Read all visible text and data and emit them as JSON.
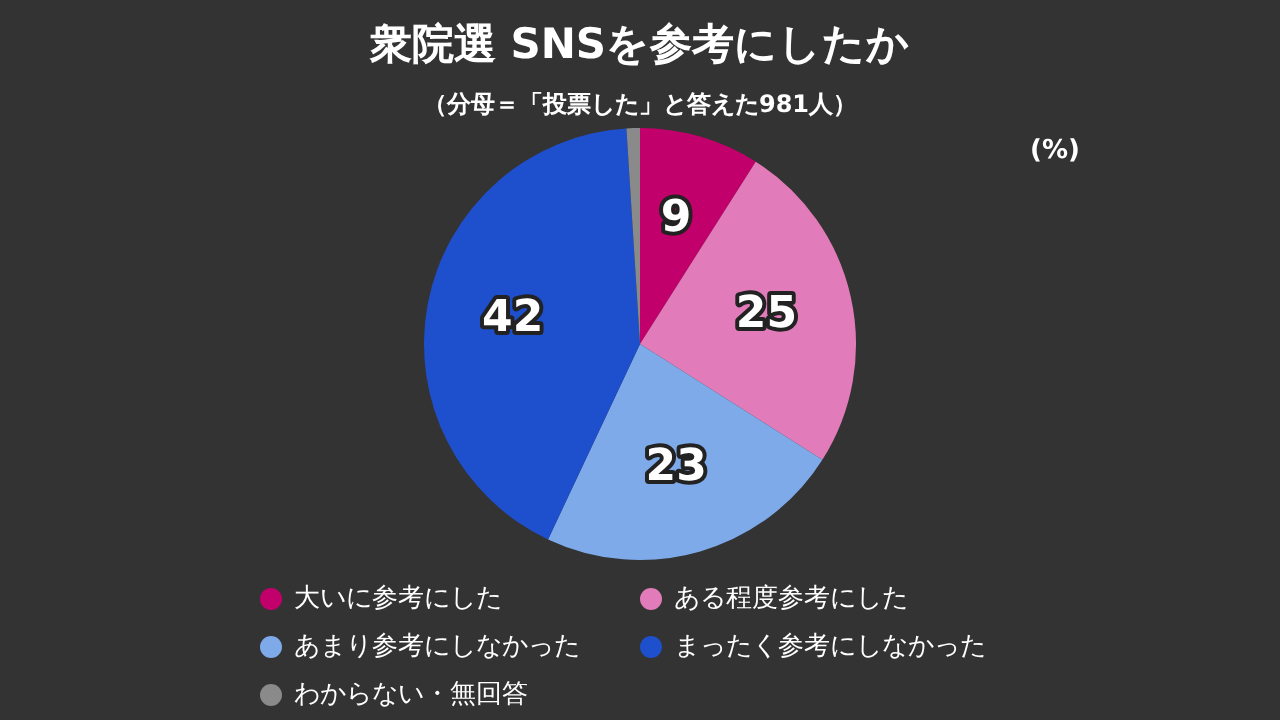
{
  "chart_data": {
    "type": "pie",
    "title": "衆院選 SNSを参考にしたか",
    "subtitle": "（分母＝「投票した」と答えた981人）",
    "annotations": [
      "(%)"
    ],
    "categories": [
      "大いに参考にした",
      "ある程度参考にした",
      "あまり参考にしなかった",
      "まったく参考にしなかった",
      "わからない・無回答"
    ],
    "values": [
      9,
      25,
      23,
      42,
      1
    ],
    "colors": [
      "#c2006b",
      "#e27bb9",
      "#7eaaea",
      "#1e4fcd",
      "#8a8a8a"
    ],
    "value_labels": [
      "9",
      "25",
      "23",
      "42",
      null
    ],
    "legend": "bottom"
  }
}
